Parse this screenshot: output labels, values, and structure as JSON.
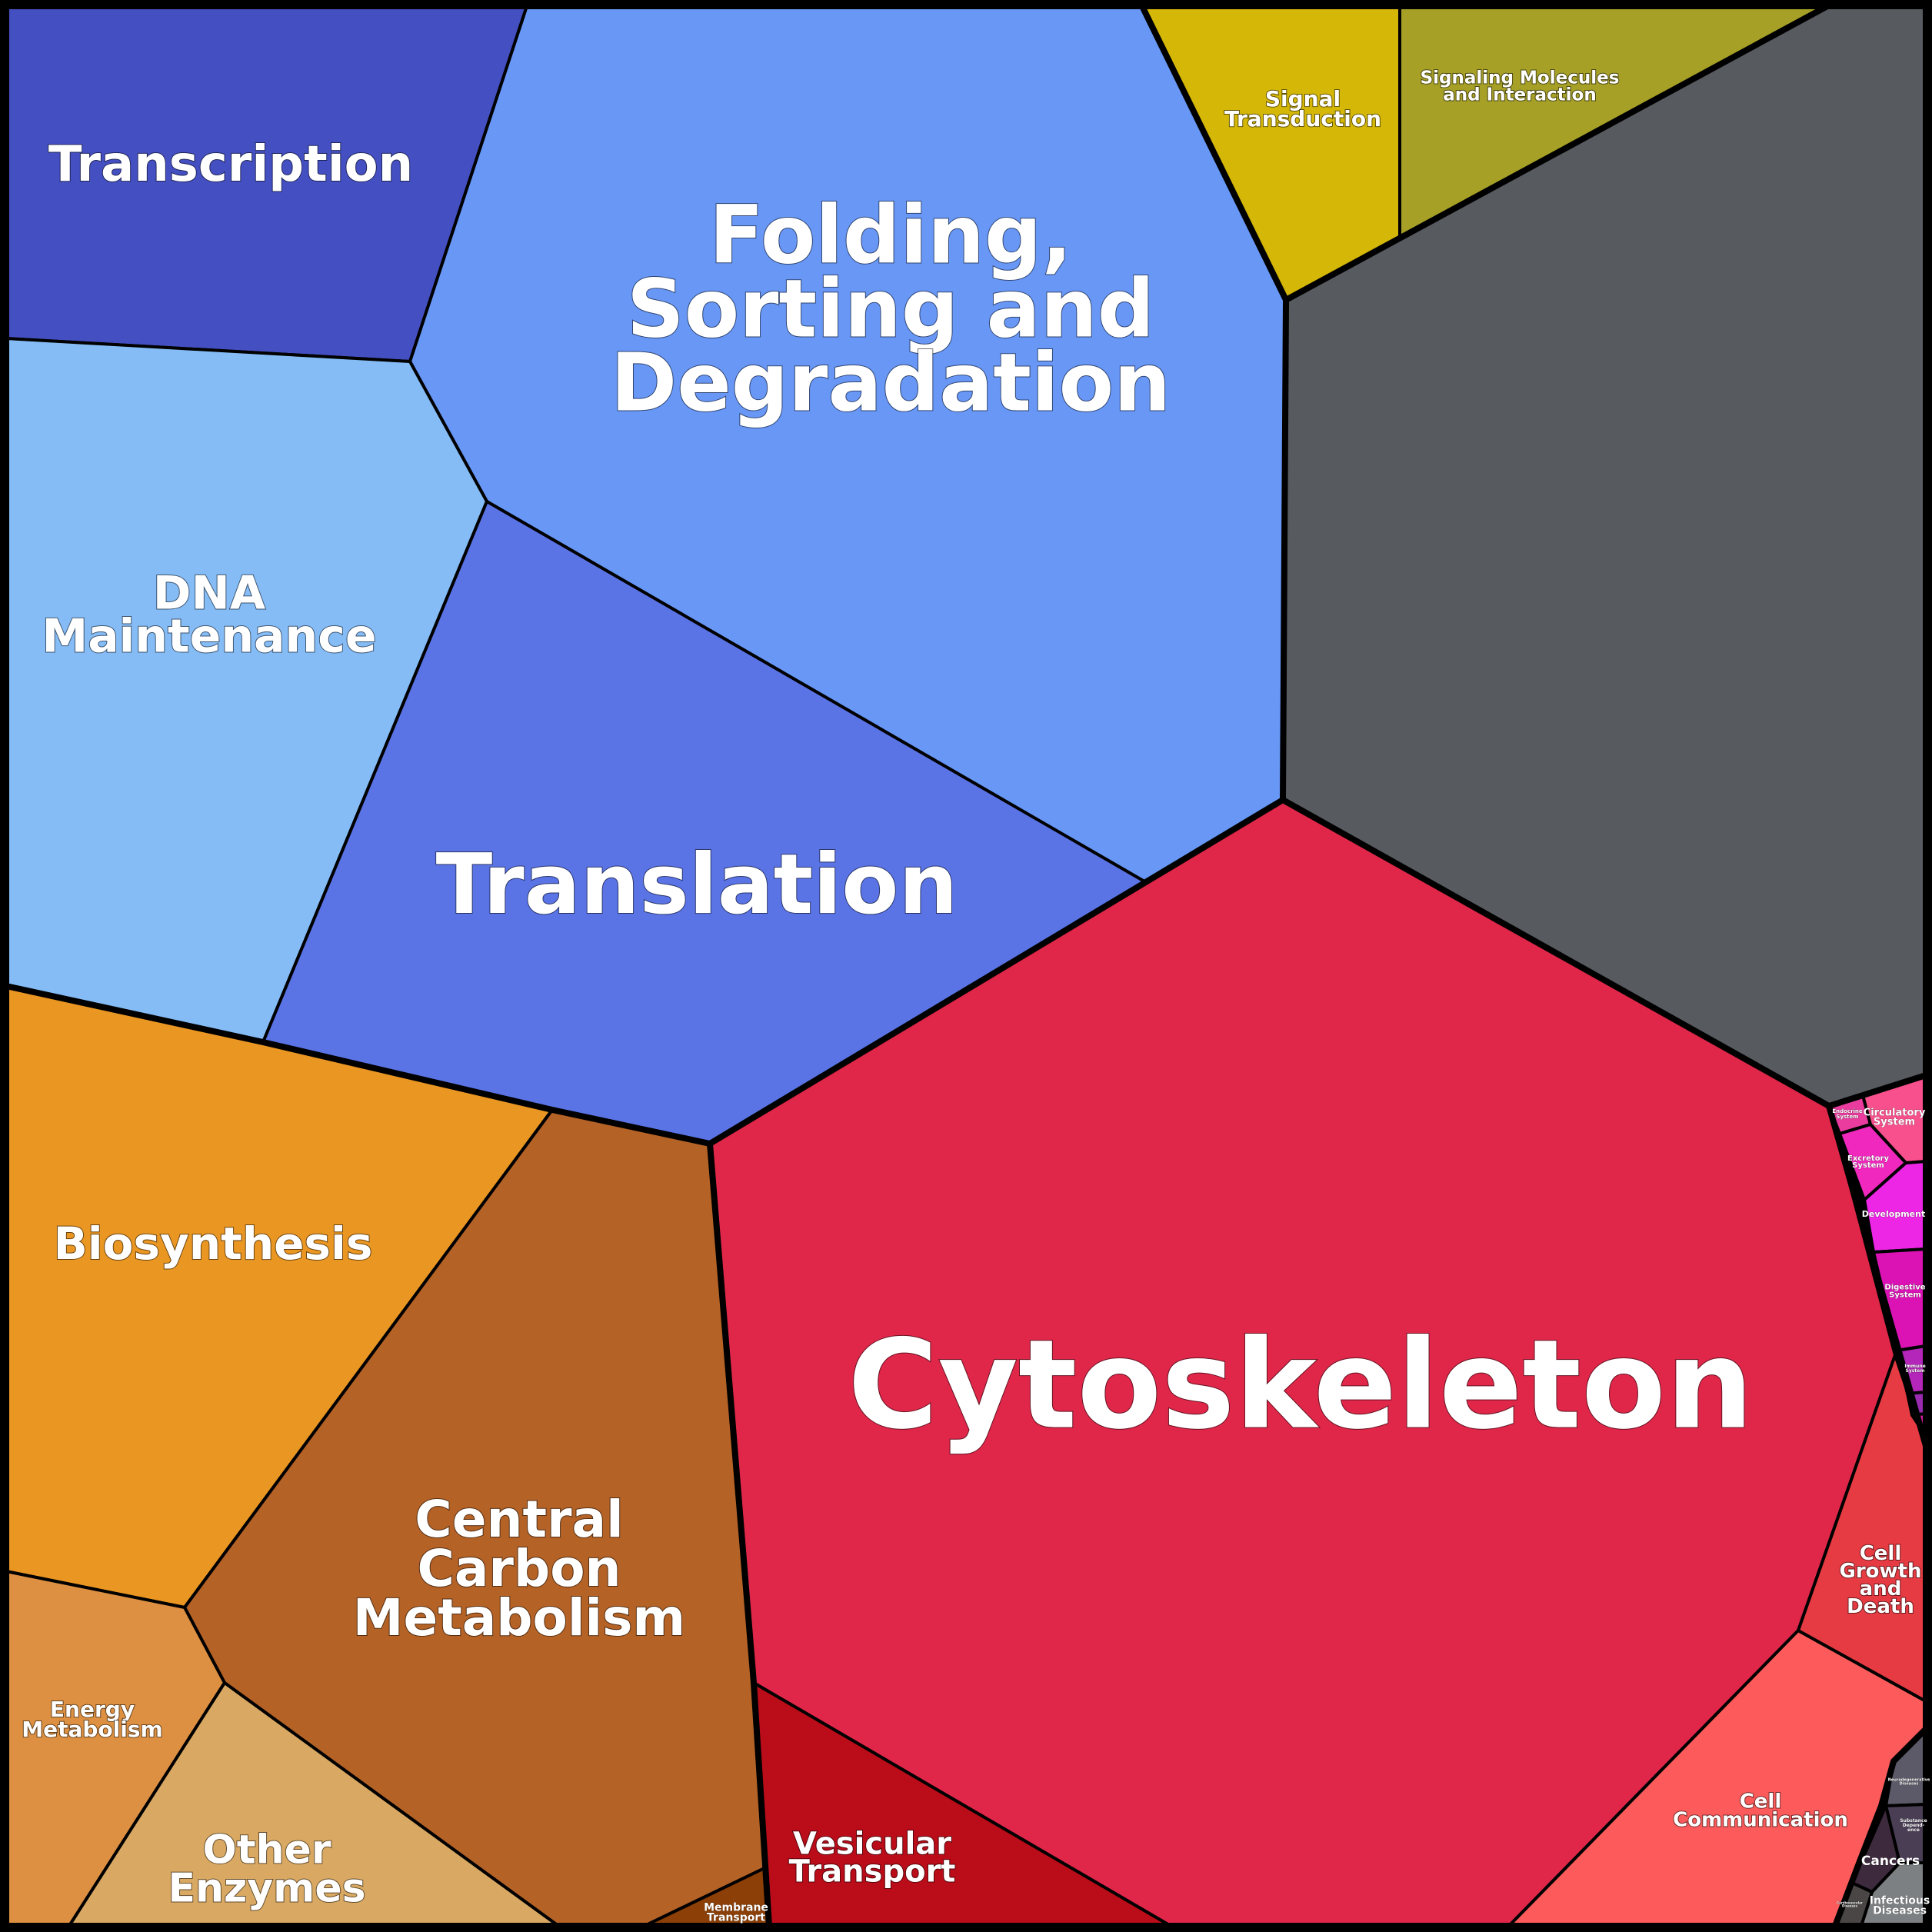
{
  "cells": [
    {
      "id": "transcription",
      "label": [
        "Transcription"
      ],
      "color": "#4450C2"
    },
    {
      "id": "folding",
      "label": [
        "Folding,",
        "Sorting and",
        "Degradation"
      ],
      "color": "#6897F6"
    },
    {
      "id": "dna-maintenance",
      "label": [
        "DNA",
        "Maintenance"
      ],
      "color": "#85BCF6"
    },
    {
      "id": "translation",
      "label": [
        "Translation"
      ],
      "color": "#5A74E6"
    },
    {
      "id": "signal-transduction",
      "label": [
        "Signal",
        "Transduction"
      ],
      "color": "#D4B707"
    },
    {
      "id": "signaling-molecules",
      "label": [
        "Signaling Molecules",
        "and Interaction"
      ],
      "color": "#A6A026"
    },
    {
      "id": "unclassified",
      "label": [],
      "color": "#575B60"
    },
    {
      "id": "cytoskeleton",
      "label": [
        "Cytoskeleton"
      ],
      "color": "#E02749"
    },
    {
      "id": "biosynthesis",
      "label": [
        "Biosynthesis"
      ],
      "color": "#EA9622"
    },
    {
      "id": "central-carbon",
      "label": [
        "Central",
        "Carbon",
        "Metabolism"
      ],
      "color": "#B46226"
    },
    {
      "id": "energy-metabolism",
      "label": [
        "Energy",
        "Metabolism"
      ],
      "color": "#DD9041"
    },
    {
      "id": "other-enzymes",
      "label": [
        "Other",
        "Enzymes"
      ],
      "color": "#D9A963"
    },
    {
      "id": "membrane-transport",
      "label": [
        "Membrane",
        "Transport"
      ],
      "color": "#8C3F06"
    },
    {
      "id": "vesicular-transport",
      "label": [
        "Vesicular",
        "Transport"
      ],
      "color": "#BB0C19"
    },
    {
      "id": "cell-communication",
      "label": [
        "Cell",
        "Communication"
      ],
      "color": "#FD5B5B"
    },
    {
      "id": "cell-growth",
      "label": [
        "Cell",
        "Growth",
        "and",
        "Death"
      ],
      "color": "#E73B43"
    },
    {
      "id": "endocrine",
      "label": [
        "Endocrine",
        "System"
      ],
      "color": "#EA3C9E"
    },
    {
      "id": "circulatory",
      "label": [
        "Circulatory",
        "System"
      ],
      "color": "#F7508C"
    },
    {
      "id": "excretory",
      "label": [
        "Excretory",
        "System"
      ],
      "color": "#F028BE"
    },
    {
      "id": "development",
      "label": [
        "Development"
      ],
      "color": "#EC26E4"
    },
    {
      "id": "digestive",
      "label": [
        "Digestive",
        "System"
      ],
      "color": "#DB12B4"
    },
    {
      "id": "immune",
      "label": [
        "Immune",
        "System"
      ],
      "color": "#B425B9"
    },
    {
      "id": "sensory",
      "label": [],
      "color": "#9A2BB0"
    },
    {
      "id": "small-magenta",
      "label": [],
      "color": "#D71CA0"
    },
    {
      "id": "neuro",
      "label": [
        "Neurodegenerative",
        "Diseases"
      ],
      "color": "#5C5968"
    },
    {
      "id": "substance",
      "label": [
        "Substance",
        "Depend-",
        "ence"
      ],
      "color": "#4A3E55"
    },
    {
      "id": "cancers",
      "label": [
        "Cancers"
      ],
      "color": "#3D2A3D"
    },
    {
      "id": "infectious",
      "label": [
        "Infectious",
        "Diseases"
      ],
      "color": "#7D8083"
    },
    {
      "id": "cardio",
      "label": [
        "Cardiovascular",
        "Diseases"
      ],
      "color": "#4A4646"
    }
  ]
}
